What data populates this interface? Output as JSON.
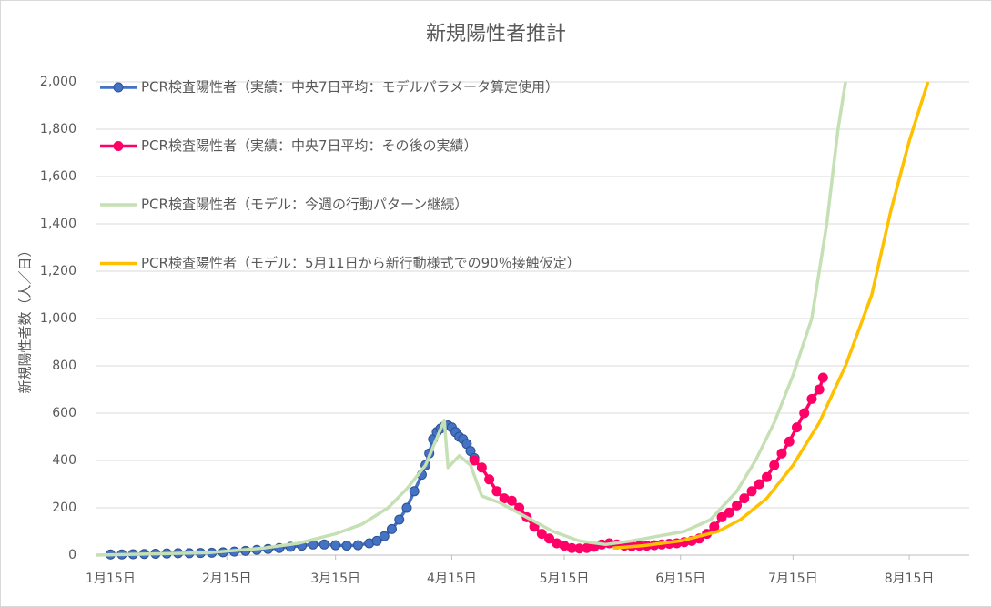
{
  "chart_data": {
    "type": "line",
    "title": "新規陽性者推計",
    "y_label": "新規陽性者数（人／日）",
    "xlim": [
      "01-11",
      "08-31"
    ],
    "xticks": [
      {
        "value": "01-15",
        "label": "1月15日"
      },
      {
        "value": "02-15",
        "label": "2月15日"
      },
      {
        "value": "03-15",
        "label": "3月15日"
      },
      {
        "value": "04-15",
        "label": "4月15日"
      },
      {
        "value": "05-15",
        "label": "5月15日"
      },
      {
        "value": "06-15",
        "label": "6月15日"
      },
      {
        "value": "07-15",
        "label": "7月15日"
      },
      {
        "value": "08-15",
        "label": "8月15日"
      }
    ],
    "ylim": [
      0,
      2000
    ],
    "yticks": [
      0,
      200,
      400,
      600,
      800,
      {
        "value": 1000,
        "label": "1,000"
      },
      {
        "value": 1200,
        "label": "1,200"
      },
      {
        "value": 1400,
        "label": "1,400"
      },
      {
        "value": 1600,
        "label": "1,600"
      },
      {
        "value": 1800,
        "label": "1,800"
      },
      {
        "value": 2000,
        "label": "2,000"
      }
    ],
    "grid": true,
    "series": [
      {
        "name": "PCR検査陽性者（実績：中央7日平均：モデルパラメータ算定使用）",
        "color": "#4472c4",
        "markers": true,
        "x": [
          "01-15",
          "01-18",
          "01-21",
          "01-24",
          "01-27",
          "01-30",
          "02-02",
          "02-05",
          "02-08",
          "02-11",
          "02-14",
          "02-17",
          "02-20",
          "02-23",
          "02-26",
          "02-29",
          "03-03",
          "03-06",
          "03-09",
          "03-12",
          "03-15",
          "03-18",
          "03-21",
          "03-24",
          "03-26",
          "03-28",
          "03-30",
          "04-01",
          "04-03",
          "04-05",
          "04-07",
          "04-08",
          "04-09",
          "04-10",
          "04-11",
          "04-12",
          "04-13",
          "04-14",
          "04-15",
          "04-16",
          "04-17",
          "04-18",
          "04-19",
          "04-20",
          "04-21"
        ],
        "values": [
          3,
          3,
          4,
          5,
          6,
          7,
          8,
          8,
          9,
          10,
          12,
          15,
          18,
          22,
          26,
          30,
          35,
          40,
          45,
          45,
          42,
          40,
          42,
          50,
          60,
          80,
          110,
          150,
          200,
          270,
          340,
          380,
          430,
          490,
          520,
          535,
          545,
          548,
          540,
          520,
          500,
          490,
          470,
          440,
          410
        ]
      },
      {
        "name": "PCR検査陽性者（実績：中央7日平均：その後の実績）",
        "color": "#ff0066",
        "markers": true,
        "x": [
          "04-21",
          "04-23",
          "04-25",
          "04-27",
          "04-29",
          "05-01",
          "05-03",
          "05-05",
          "05-07",
          "05-09",
          "05-11",
          "05-13",
          "05-15",
          "05-17",
          "05-19",
          "05-21",
          "05-23",
          "05-25",
          "05-27",
          "05-29",
          "05-31",
          "06-02",
          "06-04",
          "06-06",
          "06-08",
          "06-10",
          "06-12",
          "06-14",
          "06-16",
          "06-18",
          "06-20",
          "06-22",
          "06-24",
          "06-26",
          "06-28",
          "06-30",
          "07-02",
          "07-04",
          "07-06",
          "07-08",
          "07-10",
          "07-12",
          "07-14",
          "07-16",
          "07-18",
          "07-20",
          "07-22",
          "07-23"
        ],
        "values": [
          400,
          370,
          320,
          270,
          240,
          230,
          200,
          160,
          120,
          90,
          70,
          50,
          40,
          30,
          28,
          30,
          35,
          45,
          50,
          45,
          40,
          38,
          40,
          40,
          42,
          45,
          48,
          50,
          55,
          60,
          70,
          90,
          120,
          160,
          180,
          210,
          240,
          270,
          300,
          330,
          380,
          430,
          480,
          540,
          600,
          660,
          700,
          750
        ]
      },
      {
        "name": "PCR検査陽性者（モデル：今週の行動パターン継続）",
        "color": "#c5e0b4",
        "markers": false,
        "x": [
          "01-11",
          "01-25",
          "02-10",
          "02-25",
          "03-05",
          "03-15",
          "03-22",
          "03-29",
          "04-03",
          "04-08",
          "04-13",
          "04-14",
          "04-17",
          "04-20",
          "04-23",
          "04-28",
          "05-05",
          "05-12",
          "05-19",
          "05-26",
          "06-02",
          "06-09",
          "06-16",
          "06-23",
          "06-30",
          "07-05",
          "07-10",
          "07-15",
          "07-20",
          "07-24",
          "07-27",
          "07-29"
        ],
        "values": [
          0,
          5,
          10,
          30,
          50,
          90,
          130,
          200,
          280,
          380,
          570,
          370,
          420,
          380,
          250,
          220,
          160,
          100,
          60,
          45,
          60,
          80,
          100,
          150,
          270,
          400,
          560,
          760,
          1000,
          1400,
          1800,
          2000
        ]
      },
      {
        "name": "PCR検査陽性者（モデル：5月11日から新行動様式での90％接触仮定）",
        "color": "#ffc000",
        "markers": false,
        "x": [
          "05-28",
          "06-05",
          "06-15",
          "06-25",
          "07-01",
          "07-08",
          "07-15",
          "07-22",
          "07-29",
          "08-05",
          "08-10",
          "08-15",
          "08-20"
        ],
        "values": [
          30,
          40,
          60,
          100,
          150,
          240,
          380,
          560,
          800,
          1100,
          1450,
          1750,
          2000
        ]
      }
    ]
  }
}
